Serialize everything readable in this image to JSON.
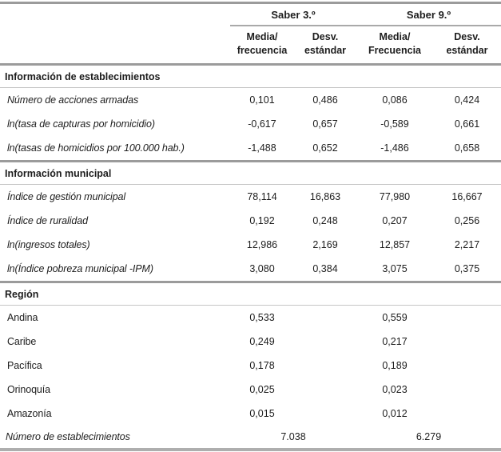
{
  "header": {
    "groups": [
      {
        "title": "Saber 3.º",
        "sub": [
          {
            "line1": "Media/",
            "line2": "frecuencia"
          },
          {
            "line1": "Desv.",
            "line2": "estándar"
          }
        ]
      },
      {
        "title": "Saber 9.º",
        "sub": [
          {
            "line1": "Media/",
            "line2": "Frecuencia"
          },
          {
            "line1": "Desv.",
            "line2": "estándar"
          }
        ]
      }
    ]
  },
  "sections": [
    {
      "title": "Información de establecimientos",
      "rows": [
        {
          "label": "Número de acciones armadas",
          "values": [
            "0,101",
            "0,486",
            "0,086",
            "0,424"
          ]
        },
        {
          "label": "ln(tasa de capturas por homicidio)",
          "values": [
            "-0,617",
            "0,657",
            "-0,589",
            "0,661"
          ]
        },
        {
          "label": "ln(tasas de homicidios por 100.000 hab.)",
          "values": [
            "-1,488",
            "0,652",
            "-1,486",
            "0,658"
          ]
        }
      ]
    },
    {
      "title": "Información municipal",
      "rows": [
        {
          "label": "Índice de gestión municipal",
          "values": [
            "78,114",
            "16,863",
            "77,980",
            "16,667"
          ]
        },
        {
          "label": "Índice de ruralidad",
          "values": [
            "0,192",
            "0,248",
            "0,207",
            "0,256"
          ]
        },
        {
          "label": "ln(ingresos totales)",
          "values": [
            "12,986",
            "2,169",
            "12,857",
            "2,217"
          ]
        },
        {
          "label": "ln(Índice pobreza municipal -IPM)",
          "values": [
            "3,080",
            "0,384",
            "3,075",
            "0,375"
          ]
        }
      ]
    },
    {
      "title": "Región",
      "rows": [
        {
          "label": "Andina",
          "values": [
            "0,533",
            "",
            "0,559",
            ""
          ]
        },
        {
          "label": "Caribe",
          "values": [
            "0,249",
            "",
            "0,217",
            ""
          ]
        },
        {
          "label": "Pacífica",
          "values": [
            "0,178",
            "",
            "0,189",
            ""
          ]
        },
        {
          "label": "Orinoquía",
          "values": [
            "0,025",
            "",
            "0,023",
            ""
          ]
        },
        {
          "label": "Amazonía",
          "values": [
            "0,015",
            "",
            "0,012",
            ""
          ]
        }
      ]
    }
  ],
  "footer": {
    "label": "Número de establecimientos",
    "values": [
      "7.038",
      "6.279"
    ]
  },
  "colors": {
    "rule_thick": "#9b9b9b",
    "rule_thin": "#c5c5c5",
    "rule_bottom": "#aeaeae",
    "text": "#1d1d1d",
    "background": "#ffffff"
  }
}
